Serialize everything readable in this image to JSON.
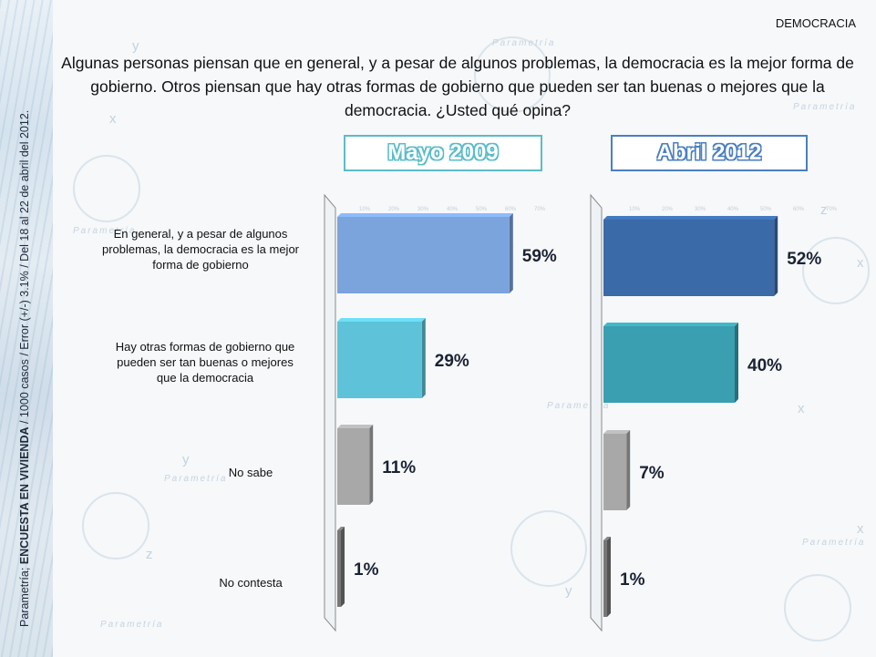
{
  "side_note": {
    "prefix": "Parametría; ",
    "bold": "ENCUESTA EN VIVIENDA",
    "suffix": " / 1000 casos / Error (+/-) 3.1% / Del 18 al 22 de abril del 2012."
  },
  "topic": "DEMOCRACIA",
  "question": "Algunas personas piensan que en general, y a pesar de algunos problemas, la democracia es la mejor forma de gobierno. Otros piensan que hay otras formas de gobierno que pueden ser tan buenas o mejores que la democracia. ¿Usted qué opina?",
  "watermark": {
    "brand": "Parametría",
    "symbols": [
      "x",
      "y",
      "z"
    ]
  },
  "colors": {
    "box_2009_border": "#5bbcc8",
    "box_2012_border": "#4a7fc0",
    "label_2009_text": "#5bbcc8",
    "label_2012_text": "#4a7fc0"
  },
  "chart_data": [
    {
      "type": "bar",
      "orientation": "horizontal",
      "title": "Mayo 2009",
      "categories": [
        "En general, y a pesar de algunos problemas, la democracia es la mejor forma de gobierno",
        "Hay otras formas de gobierno que pueden ser tan buenas o mejores que la democracia",
        "No sabe",
        "No contesta"
      ],
      "values": [
        59,
        29,
        11,
        1
      ],
      "value_labels": [
        "59%",
        "29%",
        "11%",
        "1%"
      ],
      "bar_colors": [
        "#7ba3dc",
        "#5ec3d8",
        "#a8a8a8",
        "#777777"
      ],
      "xlim": [
        0,
        70
      ],
      "tick_labels": [
        "10%",
        "20%",
        "30%",
        "40%",
        "50%",
        "60%",
        "70%"
      ]
    },
    {
      "type": "bar",
      "orientation": "horizontal",
      "title": "Abril 2012",
      "categories": [
        "En general, y a pesar de algunos problemas, la democracia es la mejor forma de gobierno",
        "Hay otras formas de gobierno que pueden ser tan buenas o mejores que la democracia",
        "No sabe",
        "No contesta"
      ],
      "values": [
        52,
        40,
        7,
        1
      ],
      "value_labels": [
        "52%",
        "40%",
        "7%",
        "1%"
      ],
      "bar_colors": [
        "#3a6aa8",
        "#3a9fb0",
        "#a8a8a8",
        "#777777"
      ],
      "xlim": [
        0,
        70
      ],
      "tick_labels": [
        "10%",
        "20%",
        "30%",
        "40%",
        "50%",
        "60%",
        "70%"
      ]
    }
  ]
}
